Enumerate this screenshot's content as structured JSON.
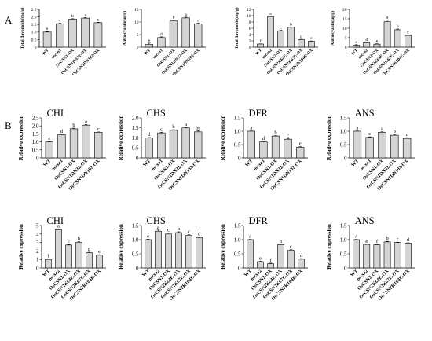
{
  "figure": {
    "panel_letters": [
      "A",
      "B"
    ]
  },
  "colors": {
    "bar": "#d4d4d4",
    "stroke": "#000000"
  },
  "chart_data": [
    {
      "id": "a1",
      "type": "bar",
      "title": "",
      "ylabel": "Total flavonoids(mg/g)",
      "ylim": [
        0,
        2.5
      ],
      "yticks": [
        0,
        0.5,
        1.0,
        1.5,
        2.0,
        2.5
      ],
      "categories": [
        "WT",
        "oscsn1",
        "OsCSN1-OX",
        "OsCSN1DN32-OX",
        "OsCSN1DN102-OX"
      ],
      "values": [
        1.0,
        1.55,
        1.85,
        1.92,
        1.62
      ],
      "errors": [
        0.03,
        0.04,
        0.03,
        0.04,
        0.03
      ],
      "letters": [
        "e",
        "c",
        "b",
        "a",
        "c"
      ]
    },
    {
      "id": "a2",
      "type": "bar",
      "title": "",
      "ylabel": "Anthocyanin(ug/g)",
      "ylim": [
        0,
        15
      ],
      "yticks": [
        0,
        5,
        10,
        15
      ],
      "categories": [
        "WT",
        "oscsn1",
        "OsCSN1-OX",
        "OsCSN1DN32-OX",
        "OsCSN1DN102-OX"
      ],
      "values": [
        1.1,
        3.8,
        10.4,
        11.6,
        9.2
      ],
      "errors": [
        0.5,
        0.3,
        0.4,
        0.3,
        0.4
      ],
      "letters": [
        "e",
        "d",
        "b",
        "a",
        "c"
      ]
    },
    {
      "id": "a3",
      "type": "bar",
      "title": "",
      "ylabel": "Total flavonoids(mg/g)",
      "ylim": [
        0,
        12
      ],
      "yticks": [
        0,
        2,
        4,
        6,
        8,
        10,
        12
      ],
      "categories": [
        "WT",
        "oscsn2",
        "OsCSN2-OX",
        "OsCSN2K64E-OX",
        "OsCSN2K67E-OX",
        "OsCSN2K104E-OX"
      ],
      "values": [
        1.0,
        9.7,
        5.2,
        6.3,
        2.4,
        1.9
      ],
      "errors": [
        0.05,
        0.15,
        0.15,
        0.12,
        0.1,
        0.08
      ],
      "letters": [
        "f",
        "a",
        "c",
        "b",
        "d",
        "e"
      ]
    },
    {
      "id": "a4",
      "type": "bar",
      "title": "",
      "ylabel": "Anthocyanin(ug/g)",
      "ylim": [
        0,
        20
      ],
      "yticks": [
        0,
        5,
        10,
        15,
        20
      ],
      "categories": [
        "WT",
        "oscsn2",
        "OsCSN2-OX",
        "OsCSN2K64E-OX",
        "OsCSN2K67E-OX",
        "OsCSN2K104E-OX"
      ],
      "values": [
        1.0,
        2.3,
        1.6,
        13.5,
        9.2,
        6.2
      ],
      "errors": [
        0.3,
        0.3,
        0.2,
        0.8,
        0.4,
        0.3
      ],
      "letters": [
        "e",
        "d",
        "e",
        "a",
        "b",
        "c"
      ]
    },
    {
      "id": "b1",
      "type": "bar",
      "title": "CHI",
      "ylabel": "Relative expression",
      "ylim": [
        0,
        2.5
      ],
      "yticks": [
        0,
        0.5,
        1.0,
        1.5,
        2.0,
        2.5
      ],
      "categories": [
        "WT",
        "oscsn1",
        "OsCSN1-OX",
        "OsCSN1DN32-OX",
        "OsCSN1DN102-OX"
      ],
      "values": [
        1.0,
        1.45,
        1.82,
        2.05,
        1.6
      ],
      "errors": [
        0.02,
        0.02,
        0.04,
        0.04,
        0.02
      ],
      "letters": [
        "e",
        "d",
        "b",
        "a",
        "c"
      ]
    },
    {
      "id": "b2",
      "type": "bar",
      "title": "CHS",
      "ylabel": "Relative expression",
      "ylim": [
        0,
        2.0
      ],
      "yticks": [
        0,
        0.5,
        1.0,
        1.5,
        2.0
      ],
      "categories": [
        "WT",
        "oscsn1",
        "OsCSN1-OX",
        "OsCSN1DN32-OX",
        "OsCSN1DN102-OX"
      ],
      "values": [
        1.0,
        1.25,
        1.38,
        1.5,
        1.3
      ],
      "errors": [
        0.02,
        0.03,
        0.03,
        0.03,
        0.05
      ],
      "letters": [
        "d",
        "c",
        "b",
        "a",
        "bc"
      ]
    },
    {
      "id": "b3",
      "type": "bar",
      "title": "DFR",
      "ylabel": "Relative expression",
      "ylim": [
        0,
        1.5
      ],
      "yticks": [
        0,
        0.5,
        1.0,
        1.5
      ],
      "categories": [
        "WT",
        "oscsn1",
        "OsCSN1-OX",
        "OsCSN1DN32-OX",
        "OsCSN1DN102-OX"
      ],
      "values": [
        1.0,
        0.6,
        0.82,
        0.7,
        0.4
      ],
      "errors": [
        0.01,
        0.02,
        0.02,
        0.02,
        0.02
      ],
      "letters": [
        "a",
        "d",
        "b",
        "c",
        "e"
      ]
    },
    {
      "id": "b4",
      "type": "bar",
      "title": "ANS",
      "ylabel": "Relative expression",
      "ylim": [
        0,
        1.5
      ],
      "yticks": [
        0,
        0.5,
        1.0,
        1.5
      ],
      "categories": [
        "WT",
        "oscsn1",
        "OsCSN1-OX",
        "OsCSN1DN32-OX",
        "OsCSN1DN102-OX"
      ],
      "values": [
        1.0,
        0.77,
        0.96,
        0.85,
        0.73
      ],
      "errors": [
        0.01,
        0.02,
        0.02,
        0.03,
        0.03
      ],
      "letters": [
        "a",
        "c",
        "a",
        "b",
        "c"
      ]
    },
    {
      "id": "b5",
      "type": "bar",
      "title": "CHI",
      "ylabel": "Relative expression",
      "ylim": [
        0,
        5
      ],
      "yticks": [
        0,
        1,
        2,
        3,
        4,
        5
      ],
      "categories": [
        "WT",
        "oscsn2",
        "OsCSN2-OX",
        "OsCSN2K64E-OX",
        "OsCSN2K67E-OX",
        "OsCSN2K104E-OX"
      ],
      "values": [
        1.0,
        4.5,
        2.7,
        3.0,
        1.8,
        1.5
      ],
      "errors": [
        0.05,
        0.1,
        0.06,
        0.08,
        0.05,
        0.06
      ],
      "letters": [
        "f",
        "a",
        "c",
        "b",
        "d",
        "e"
      ]
    },
    {
      "id": "b6",
      "type": "bar",
      "title": "CHS",
      "ylabel": "Relative expression",
      "ylim": [
        0,
        1.5
      ],
      "yticks": [
        0,
        0.5,
        1.0,
        1.5
      ],
      "categories": [
        "WT",
        "oscsn2",
        "OsCSN2-OX",
        "OsCSN2K64E-OX",
        "OsCSN2K67E-OX",
        "OsCSN2K104E-OX"
      ],
      "values": [
        1.0,
        1.3,
        1.2,
        1.25,
        1.15,
        1.07
      ],
      "errors": [
        0.02,
        0.04,
        0.03,
        0.03,
        0.03,
        0.03
      ],
      "letters": [
        "e",
        "a",
        "c",
        "b",
        "c",
        "d"
      ]
    },
    {
      "id": "b7",
      "type": "bar",
      "title": "DFR",
      "ylabel": "Relative expression",
      "ylim": [
        0,
        1.5
      ],
      "yticks": [
        0,
        0.5,
        1.0,
        1.5
      ],
      "categories": [
        "WT",
        "oscsn2",
        "OsCSN2-OX",
        "OsCSN2K64E-OX",
        "OsCSN2K67E-OX",
        "OsCSN2K104E-OX"
      ],
      "values": [
        1.0,
        0.22,
        0.15,
        0.82,
        0.62,
        0.31
      ],
      "errors": [
        0.01,
        0.02,
        0.02,
        0.02,
        0.03,
        0.02
      ],
      "letters": [
        "a",
        "e",
        "f",
        "b",
        "c",
        "d"
      ]
    },
    {
      "id": "b8",
      "type": "bar",
      "title": "ANS",
      "ylabel": "Relative expression",
      "ylim": [
        0,
        1.5
      ],
      "yticks": [
        0,
        0.5,
        1.0,
        1.5
      ],
      "categories": [
        "WT",
        "oscsn2",
        "OsCSN2-OX",
        "OsCSN2K64E-OX",
        "OsCSN2K67E-OX",
        "OsCSN2K104E-OX"
      ],
      "values": [
        1.0,
        0.83,
        0.82,
        0.92,
        0.9,
        0.88
      ],
      "errors": [
        0.01,
        0.01,
        0.01,
        0.02,
        0.01,
        0.01
      ],
      "letters": [
        "a",
        "e",
        "f",
        "b",
        "c",
        "d"
      ]
    }
  ]
}
